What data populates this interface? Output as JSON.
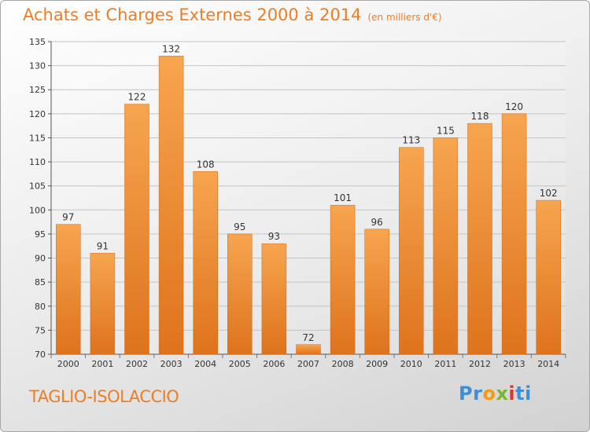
{
  "header": {
    "title": "Achats et Charges Externes 2000 à 2014",
    "unit": "(en milliers d'€)"
  },
  "footer": {
    "place": "TAGLIO-ISOLACCIO",
    "brand_letters": [
      "P",
      "r",
      "o",
      "x",
      "i",
      "t",
      "i"
    ],
    "brand_colors": [
      "#3d8fd6",
      "#3d8fd6",
      "#f39b16",
      "#7ab52e",
      "#d83a2e",
      "#3d8fd6",
      "#3d8fd6"
    ]
  },
  "chart_data": {
    "type": "bar",
    "title": "Achats et Charges Externes 2000 à 2014",
    "subtitle": "(en milliers d'€)",
    "categories": [
      "2000",
      "2001",
      "2002",
      "2003",
      "2004",
      "2005",
      "2006",
      "2007",
      "2008",
      "2009",
      "2010",
      "2011",
      "2012",
      "2013",
      "2014"
    ],
    "values": [
      97,
      91,
      122,
      132,
      108,
      95,
      93,
      72,
      101,
      96,
      113,
      115,
      118,
      120,
      102
    ],
    "ylim": [
      70,
      135
    ],
    "yticks": [
      70,
      75,
      80,
      85,
      90,
      95,
      100,
      105,
      110,
      115,
      120,
      125,
      130,
      135
    ],
    "grid": true,
    "bar_color": "#ef8a2c",
    "data_labels": true
  }
}
